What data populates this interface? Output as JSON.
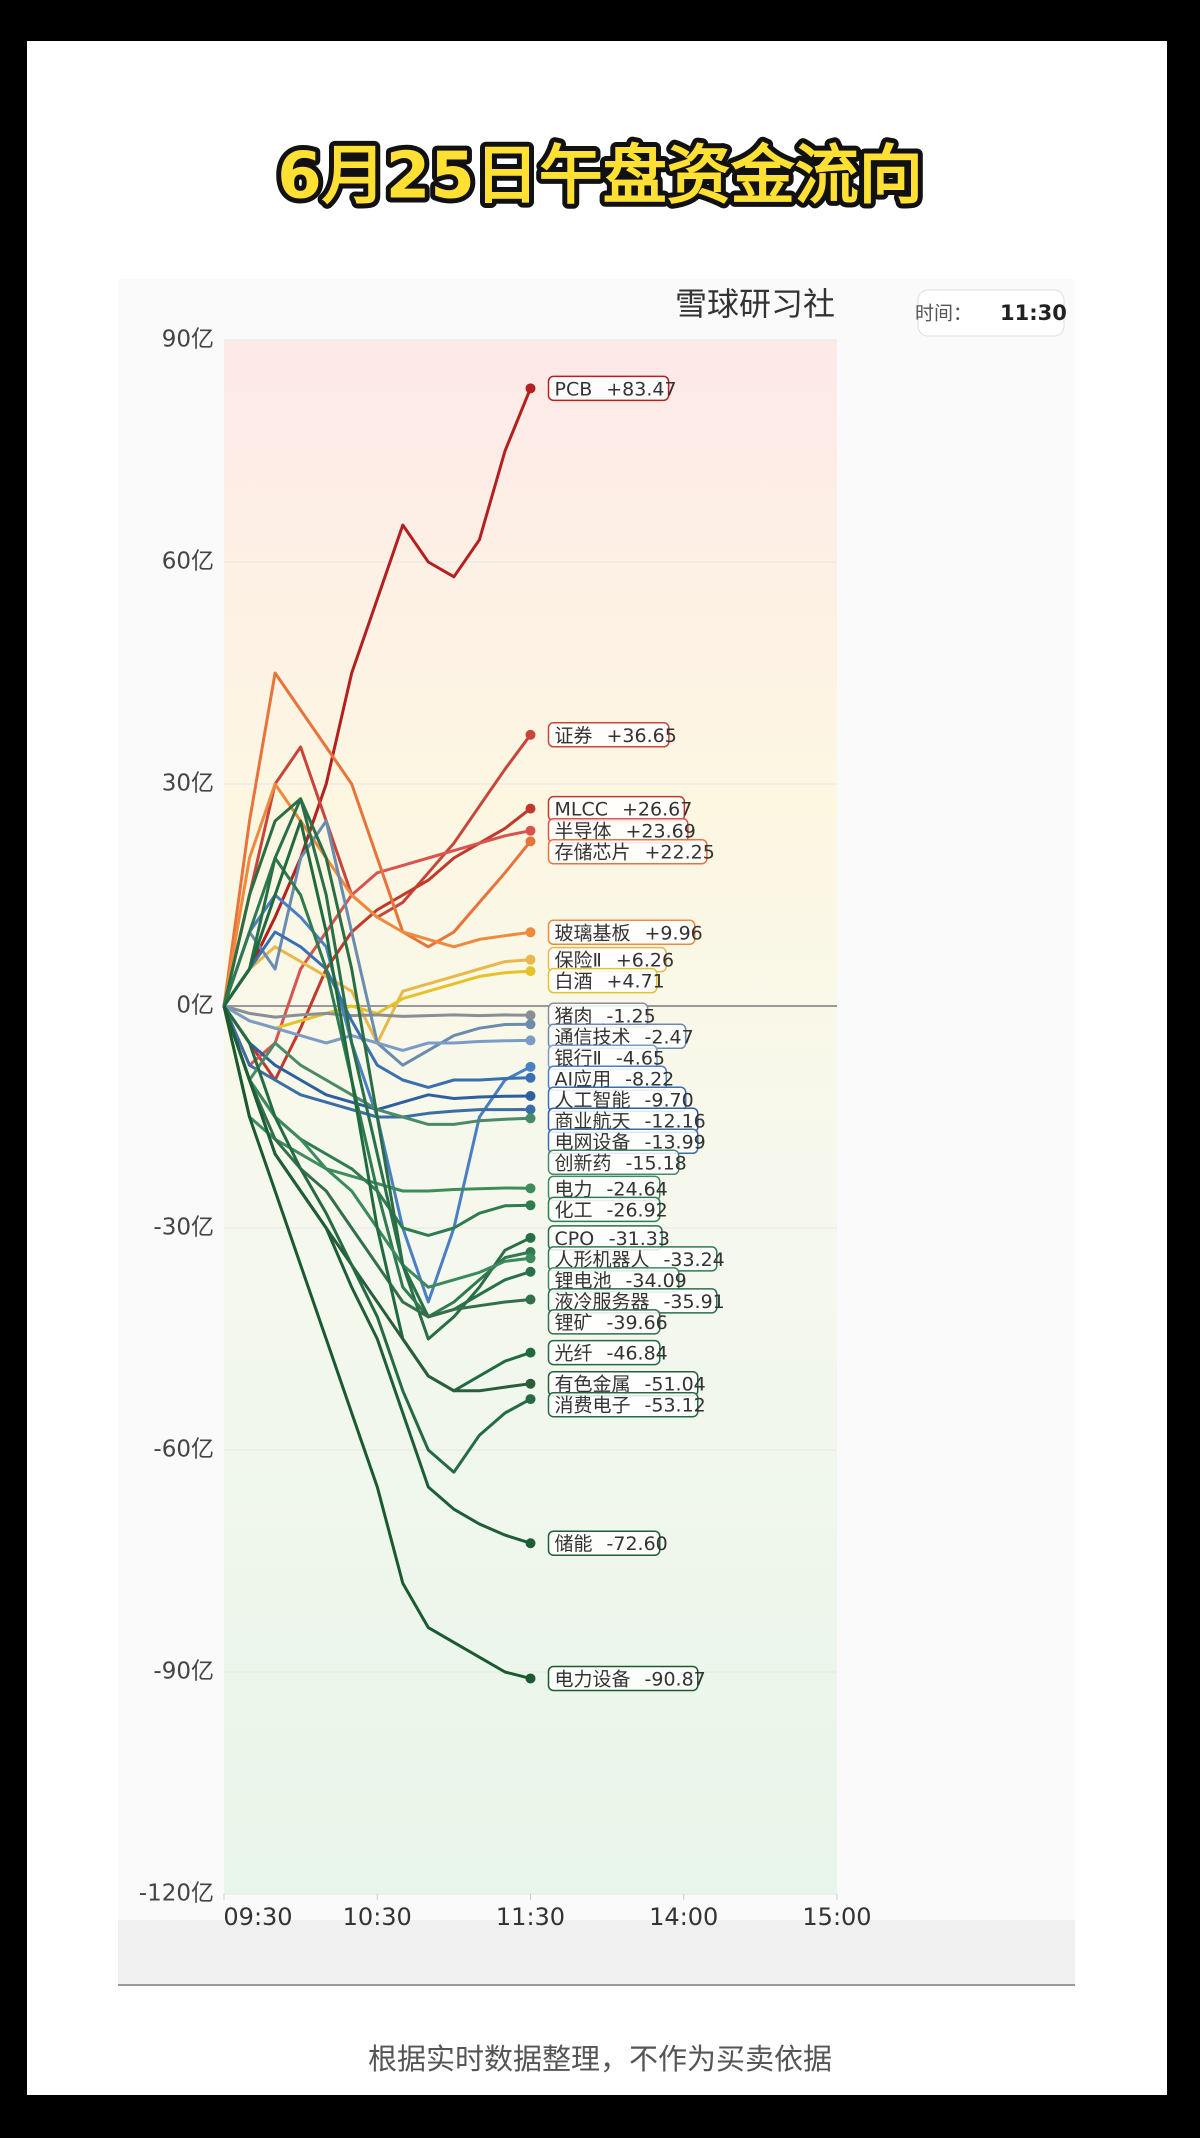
{
  "header": {
    "title": "6月25日午盘资金流向"
  },
  "chart_data": {
    "type": "line",
    "brand": "雪球研习社",
    "time_label": "时间：",
    "time_value": "11:30",
    "x": [
      0,
      10,
      20,
      30,
      40,
      50,
      60,
      70,
      80,
      90,
      100,
      110,
      120
    ],
    "xlim": [
      0,
      240
    ],
    "xticks": [
      {
        "value": 0,
        "label": "09:30"
      },
      {
        "value": 60,
        "label": "10:30"
      },
      {
        "value": 120,
        "label": "11:30"
      },
      {
        "value": 180,
        "label": "14:00"
      },
      {
        "value": 240,
        "label": "15:00"
      }
    ],
    "ylim": [
      -120,
      90
    ],
    "yticks": [
      {
        "value": 90,
        "label": "90亿"
      },
      {
        "value": 60,
        "label": "60亿"
      },
      {
        "value": 30,
        "label": "30亿"
      },
      {
        "value": 0,
        "label": "0亿"
      },
      {
        "value": -30,
        "label": "-30亿"
      },
      {
        "value": -60,
        "label": "-60亿"
      },
      {
        "value": -90,
        "label": "-90亿"
      },
      {
        "value": -120,
        "label": "-120亿"
      }
    ],
    "grid": true,
    "series": [
      {
        "name": "PCB",
        "color": "#b3201f",
        "values": [
          0,
          5,
          12,
          20,
          30,
          45,
          55,
          65,
          60,
          58,
          63,
          75,
          83.47
        ],
        "value_labels": [
          null,
          null,
          null,
          null,
          null,
          null,
          null,
          null,
          null,
          null,
          null,
          null,
          "+83.47"
        ]
      },
      {
        "name": "证券",
        "color": "#c8453a",
        "values": [
          0,
          15,
          30,
          35,
          25,
          15,
          12,
          14,
          18,
          22,
          27,
          32,
          36.65
        ],
        "value_labels": [
          null,
          null,
          null,
          null,
          null,
          null,
          null,
          null,
          null,
          null,
          null,
          null,
          "+36.65"
        ]
      },
      {
        "name": "MLCC",
        "color": "#c0392b",
        "values": [
          0,
          -5,
          -10,
          -3,
          5,
          10,
          13,
          15,
          17,
          20,
          22,
          24,
          26.67
        ],
        "value_labels": [
          null,
          null,
          null,
          null,
          null,
          null,
          null,
          null,
          null,
          null,
          null,
          null,
          "+26.67"
        ]
      },
      {
        "name": "半导体",
        "color": "#d9534f",
        "values": [
          0,
          -8,
          -5,
          5,
          10,
          15,
          18,
          19,
          20,
          21,
          22,
          23,
          23.69
        ],
        "value_labels": [
          null,
          null,
          null,
          null,
          null,
          null,
          null,
          null,
          null,
          null,
          null,
          null,
          "+23.69"
        ]
      },
      {
        "name": "存储芯片",
        "color": "#e8743b",
        "values": [
          0,
          25,
          45,
          40,
          35,
          30,
          20,
          10,
          8,
          10,
          14,
          18,
          22.25
        ],
        "value_labels": [
          null,
          null,
          null,
          null,
          null,
          null,
          null,
          null,
          null,
          null,
          null,
          null,
          "+22.25"
        ]
      },
      {
        "name": "玻璃基板",
        "color": "#ef8a3c",
        "values": [
          0,
          20,
          30,
          25,
          20,
          15,
          12,
          10,
          9,
          8,
          9,
          9.5,
          9.96
        ],
        "value_labels": [
          null,
          null,
          null,
          null,
          null,
          null,
          null,
          null,
          null,
          null,
          null,
          null,
          "+9.96"
        ]
      },
      {
        "name": "保险Ⅱ",
        "color": "#e8b84a",
        "values": [
          0,
          5,
          8,
          6,
          4,
          2,
          -5,
          2,
          3,
          4,
          5,
          6,
          6.26
        ],
        "value_labels": [
          null,
          null,
          null,
          null,
          null,
          null,
          null,
          null,
          null,
          null,
          null,
          null,
          "+6.26"
        ]
      },
      {
        "name": "白酒",
        "color": "#e6c229",
        "values": [
          0,
          -2,
          -3,
          -2,
          -1,
          0,
          -1,
          1,
          2,
          3,
          4,
          4.5,
          4.71
        ],
        "value_labels": [
          null,
          null,
          null,
          null,
          null,
          null,
          null,
          null,
          null,
          null,
          null,
          null,
          "+4.71"
        ]
      },
      {
        "name": "猪肉",
        "color": "#8a8f96",
        "values": [
          0,
          -1,
          -1.5,
          -1.2,
          -1,
          -1.3,
          -1.2,
          -1.4,
          -1.3,
          -1.2,
          -1.3,
          -1.2,
          -1.25
        ],
        "value_labels": [
          null,
          null,
          null,
          null,
          null,
          null,
          null,
          null,
          null,
          null,
          null,
          null,
          "-1.25"
        ]
      },
      {
        "name": "通信技术",
        "color": "#6a8caf",
        "values": [
          0,
          10,
          5,
          20,
          25,
          10,
          -5,
          -8,
          -6,
          -4,
          -3,
          -2.5,
          -2.47
        ],
        "value_labels": [
          null,
          null,
          null,
          null,
          null,
          null,
          null,
          null,
          null,
          null,
          null,
          null,
          "-2.47"
        ]
      },
      {
        "name": "银行Ⅱ",
        "color": "#7a9cc6",
        "values": [
          0,
          -2,
          -3,
          -4,
          -5,
          -4,
          -5,
          -6,
          -5,
          -5,
          -4.8,
          -4.7,
          -4.65
        ],
        "value_labels": [
          null,
          null,
          null,
          null,
          null,
          null,
          null,
          null,
          null,
          null,
          null,
          null,
          "-4.65"
        ]
      },
      {
        "name": "AI应用",
        "color": "#4a7fc1",
        "values": [
          0,
          10,
          15,
          12,
          8,
          -5,
          -15,
          -30,
          -40,
          -30,
          -15,
          -10,
          -8.22
        ],
        "value_labels": [
          null,
          null,
          null,
          null,
          null,
          null,
          null,
          null,
          null,
          null,
          null,
          null,
          "-8.22"
        ]
      },
      {
        "name": "人工智能",
        "color": "#3a6fb0",
        "values": [
          0,
          5,
          10,
          8,
          5,
          -2,
          -8,
          -10,
          -11,
          -10,
          -10,
          -9.8,
          -9.7
        ],
        "value_labels": [
          null,
          null,
          null,
          null,
          null,
          null,
          null,
          null,
          null,
          null,
          null,
          null,
          "-9.70"
        ]
      },
      {
        "name": "商业航天",
        "color": "#2e5f9e",
        "values": [
          0,
          -5,
          -8,
          -10,
          -12,
          -13,
          -14,
          -13,
          -12,
          -12.5,
          -12.3,
          -12.2,
          -12.16
        ],
        "value_labels": [
          null,
          null,
          null,
          null,
          null,
          null,
          null,
          null,
          null,
          null,
          null,
          null,
          "-12.16"
        ]
      },
      {
        "name": "电网设备",
        "color": "#3b6ea5",
        "values": [
          0,
          -8,
          -10,
          -12,
          -13,
          -14,
          -15,
          -15,
          -14.5,
          -14.2,
          -14,
          -14,
          -13.99
        ],
        "value_labels": [
          null,
          null,
          null,
          null,
          null,
          null,
          null,
          null,
          null,
          null,
          null,
          null,
          "-13.99"
        ]
      },
      {
        "name": "创新药",
        "color": "#4a8a6a",
        "values": [
          0,
          -10,
          -5,
          -8,
          -10,
          -12,
          -14,
          -15,
          -16,
          -16,
          -15.5,
          -15.3,
          -15.18
        ],
        "value_labels": [
          null,
          null,
          null,
          null,
          null,
          null,
          null,
          null,
          null,
          null,
          null,
          null,
          "-15.18"
        ]
      },
      {
        "name": "电力",
        "color": "#3d8c5a",
        "values": [
          0,
          -15,
          -18,
          -20,
          -22,
          -23,
          -24,
          -25,
          -25,
          -24.8,
          -24.7,
          -24.6,
          -24.64
        ],
        "value_labels": [
          null,
          null,
          null,
          null,
          null,
          null,
          null,
          null,
          null,
          null,
          null,
          null,
          "-24.64"
        ]
      },
      {
        "name": "化工",
        "color": "#2f7d4f",
        "values": [
          0,
          -10,
          -15,
          -18,
          -20,
          -22,
          -25,
          -30,
          -31,
          -30,
          -28,
          -27,
          -26.92
        ],
        "value_labels": [
          null,
          null,
          null,
          null,
          null,
          null,
          null,
          null,
          null,
          null,
          null,
          null,
          "-26.92"
        ]
      },
      {
        "name": "CPO",
        "color": "#2a6e45",
        "values": [
          0,
          15,
          25,
          28,
          20,
          5,
          -15,
          -35,
          -45,
          -42,
          -38,
          -33,
          -31.33
        ],
        "value_labels": [
          null,
          null,
          null,
          null,
          null,
          null,
          null,
          null,
          null,
          null,
          null,
          null,
          "-31.33"
        ]
      },
      {
        "name": "人形机器人",
        "color": "#2f7a50",
        "values": [
          0,
          10,
          20,
          15,
          5,
          -10,
          -25,
          -38,
          -42,
          -40,
          -37,
          -34,
          -33.24
        ],
        "value_labels": [
          null,
          null,
          null,
          null,
          null,
          null,
          null,
          null,
          null,
          null,
          null,
          null,
          "-33.24"
        ]
      },
      {
        "name": "锂电池",
        "color": "#3a8a5c",
        "values": [
          0,
          -10,
          -15,
          -18,
          -22,
          -25,
          -30,
          -35,
          -38,
          -37,
          -36,
          -34.5,
          -34.09
        ],
        "value_labels": [
          null,
          null,
          null,
          null,
          null,
          null,
          null,
          null,
          null,
          null,
          null,
          null,
          "-34.09"
        ]
      },
      {
        "name": "液冷服务器",
        "color": "#28704a",
        "values": [
          0,
          5,
          20,
          28,
          15,
          -5,
          -20,
          -35,
          -42,
          -41,
          -39,
          -37,
          -35.91
        ],
        "value_labels": [
          null,
          null,
          null,
          null,
          null,
          null,
          null,
          null,
          null,
          null,
          null,
          null,
          "-35.91"
        ]
      },
      {
        "name": "锂矿",
        "color": "#356f4a",
        "values": [
          0,
          -10,
          -18,
          -22,
          -25,
          -30,
          -35,
          -40,
          -42,
          -41,
          -40.5,
          -40,
          -39.66
        ],
        "value_labels": [
          null,
          null,
          null,
          null,
          null,
          null,
          null,
          null,
          null,
          null,
          null,
          null,
          "-39.66"
        ]
      },
      {
        "name": "光纤",
        "color": "#1f6b3f",
        "values": [
          0,
          5,
          15,
          25,
          10,
          -10,
          -30,
          -45,
          -50,
          -52,
          -50,
          -48,
          -46.84
        ],
        "value_labels": [
          null,
          null,
          null,
          null,
          null,
          null,
          null,
          null,
          null,
          null,
          null,
          null,
          "-46.84"
        ]
      },
      {
        "name": "有色金属",
        "color": "#2a5e3a",
        "values": [
          0,
          -10,
          -20,
          -25,
          -30,
          -35,
          -40,
          -45,
          -50,
          -52,
          -52,
          -51.5,
          -51.04
        ],
        "value_labels": [
          null,
          null,
          null,
          null,
          null,
          null,
          null,
          null,
          null,
          null,
          null,
          null,
          "-51.04"
        ]
      },
      {
        "name": "消费电子",
        "color": "#246b44",
        "values": [
          0,
          -5,
          -15,
          -22,
          -28,
          -35,
          -42,
          -52,
          -60,
          -63,
          -58,
          -55,
          -53.12
        ],
        "value_labels": [
          null,
          null,
          null,
          null,
          null,
          null,
          null,
          null,
          null,
          null,
          null,
          null,
          "-53.12"
        ]
      },
      {
        "name": "储能",
        "color": "#1d5e36",
        "values": [
          0,
          -10,
          -20,
          -25,
          -30,
          -38,
          -45,
          -55,
          -65,
          -68,
          -70,
          -71.5,
          -72.6
        ],
        "value_labels": [
          null,
          null,
          null,
          null,
          null,
          null,
          null,
          null,
          null,
          null,
          null,
          null,
          "-72.60"
        ]
      },
      {
        "name": "电力设备",
        "color": "#1a5a2e",
        "values": [
          0,
          -15,
          -25,
          -35,
          -45,
          -55,
          -65,
          -78,
          -84,
          -86,
          -88,
          -90,
          -90.87
        ],
        "value_labels": [
          null,
          null,
          null,
          null,
          null,
          null,
          null,
          null,
          null,
          null,
          null,
          null,
          "-90.87"
        ]
      }
    ]
  },
  "footer": {
    "note": "根据实时数据整理，不作为买卖依据"
  }
}
